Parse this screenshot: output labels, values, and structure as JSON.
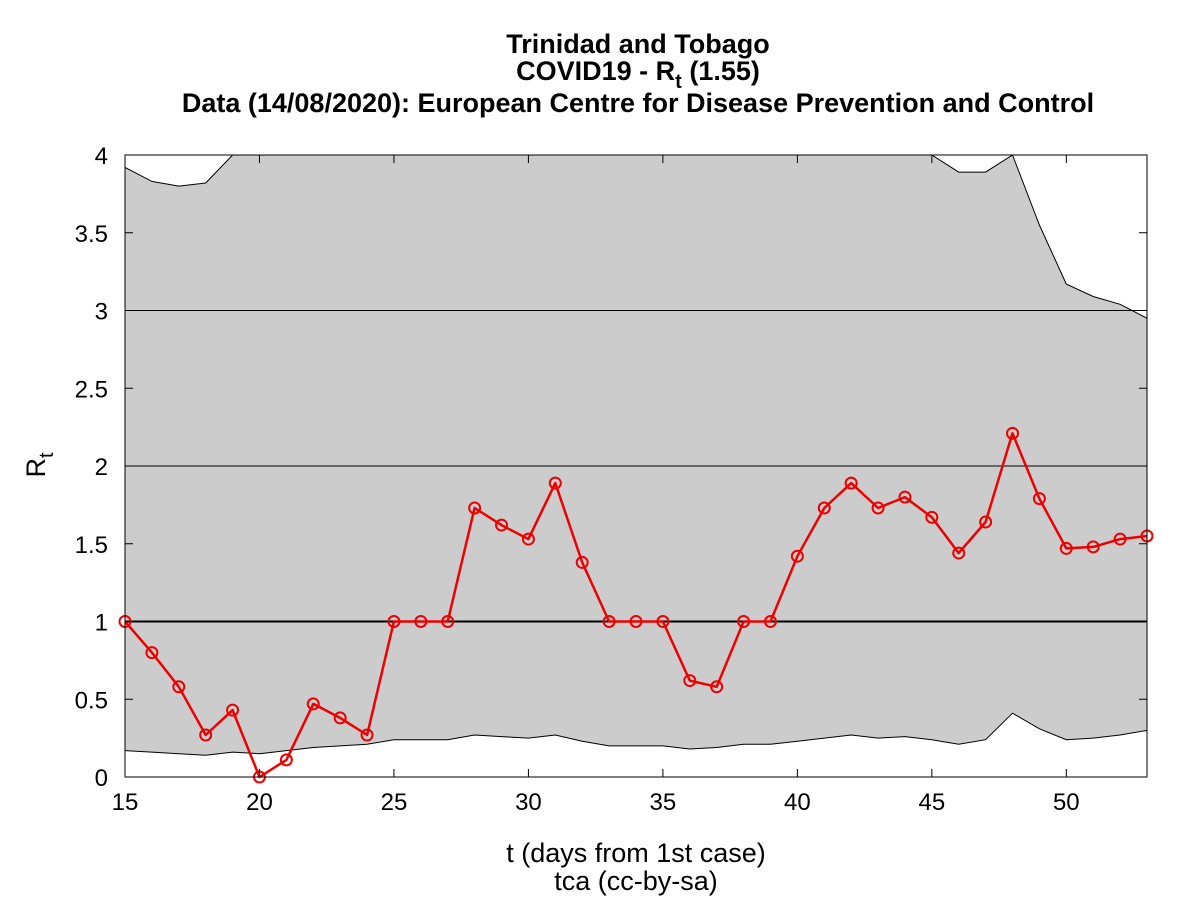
{
  "chart_data": {
    "type": "line",
    "title": {
      "line1": "Trinidad and Tobago",
      "line2_prefix": "COVID19 - R",
      "line2_sub": "t",
      "line2_suffix": " (1.55)",
      "line3": "Data (14/08/2020): European Centre for Disease Prevention and Control"
    },
    "xlabel": "t (days from 1st case)",
    "credit": "tca (cc-by-sa)",
    "ylabel": "R",
    "ylabel_sub": "t",
    "xlim": [
      15,
      53
    ],
    "ylim": [
      0,
      4
    ],
    "xticks": [
      "15",
      "20",
      "25",
      "30",
      "35",
      "40",
      "45",
      "50"
    ],
    "yticks": [
      "0",
      "0.5",
      "1",
      "1.5",
      "2",
      "2.5",
      "3",
      "3.5",
      "4"
    ],
    "grid_y": [
      1,
      2,
      3
    ],
    "reference_line_y": 1,
    "band_color": "#cccccc",
    "line_color": "#ee0000",
    "x": [
      15,
      16,
      17,
      18,
      19,
      20,
      21,
      22,
      23,
      24,
      25,
      26,
      27,
      28,
      29,
      30,
      31,
      32,
      33,
      34,
      35,
      36,
      37,
      38,
      39,
      40,
      41,
      42,
      43,
      44,
      45,
      46,
      47,
      48,
      49,
      50,
      51,
      52,
      53
    ],
    "series": [
      {
        "values": [
          1.0,
          0.8,
          0.58,
          0.27,
          0.43,
          0.0,
          0.11,
          0.47,
          0.38,
          0.27,
          1.0,
          1.0,
          1.0,
          1.73,
          1.62,
          1.53,
          1.89,
          1.38,
          1.0,
          1.0,
          1.0,
          0.62,
          0.58,
          1.0,
          1.0,
          1.42,
          1.73,
          1.89,
          1.73,
          1.8,
          1.67,
          1.44,
          1.64,
          2.21,
          1.79,
          1.47,
          1.48,
          1.53,
          1.55
        ]
      }
    ],
    "band_upper": [
      3.92,
      3.83,
      3.8,
      3.82,
      4.0,
      4.0,
      4.0,
      4.0,
      4.0,
      4.0,
      4.0,
      4.0,
      4.0,
      4.0,
      4.0,
      4.0,
      4.0,
      4.0,
      4.0,
      4.0,
      4.0,
      4.0,
      4.0,
      4.0,
      4.0,
      4.0,
      4.0,
      4.0,
      4.0,
      4.0,
      4.0,
      3.89,
      3.89,
      4.0,
      3.55,
      3.17,
      3.09,
      3.04,
      2.95
    ],
    "band_lower": [
      0.17,
      0.16,
      0.15,
      0.14,
      0.16,
      0.15,
      0.17,
      0.19,
      0.2,
      0.21,
      0.24,
      0.24,
      0.24,
      0.27,
      0.26,
      0.25,
      0.27,
      0.23,
      0.2,
      0.2,
      0.2,
      0.18,
      0.19,
      0.21,
      0.21,
      0.23,
      0.25,
      0.27,
      0.25,
      0.26,
      0.24,
      0.21,
      0.24,
      0.41,
      0.31,
      0.24,
      0.25,
      0.27,
      0.3
    ]
  }
}
